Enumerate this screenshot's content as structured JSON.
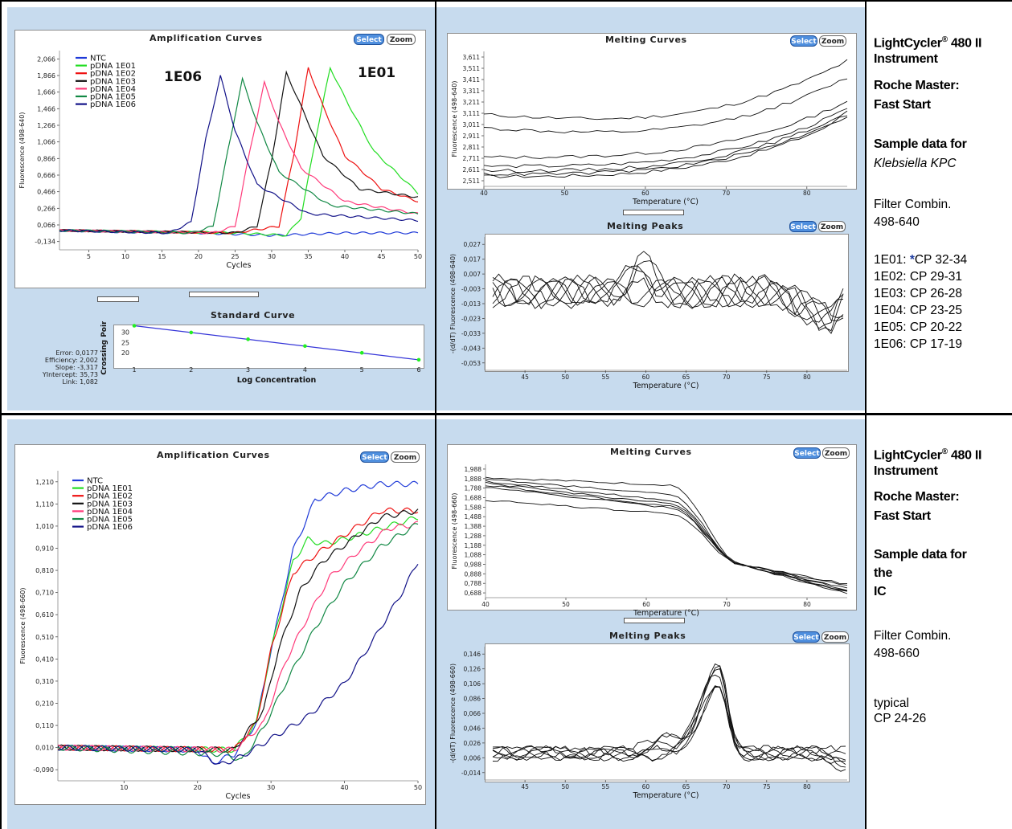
{
  "top": {
    "amp": {
      "title": "Amplification Curves",
      "select": "Select",
      "zoom": "Zoom",
      "ylabel": "Fluorescence (498-640)",
      "xlabel": "Cycles",
      "legend": [
        {
          "name": "NTC",
          "color": "#1f3ad8"
        },
        {
          "name": "pDNA 1E01",
          "color": "#22dd22"
        },
        {
          "name": "pDNA 1E02",
          "color": "#ee1111"
        },
        {
          "name": "pDNA 1E03",
          "color": "#111111"
        },
        {
          "name": "pDNA 1E04",
          "color": "#ff3a7a"
        },
        {
          "name": "pDNA 1E05",
          "color": "#118844"
        },
        {
          "name": "pDNA 1E06",
          "color": "#121288"
        }
      ],
      "annot_left": "1E06",
      "annot_right": "1E01"
    },
    "std": {
      "title": "Standard Curve",
      "ylabel": "Crossing Point",
      "xlabel": "Log Concentration",
      "stats": [
        "Error: 0,0177",
        "Efficiency: 2,002",
        "Slope: -3,317",
        "YIntercept: 35,73",
        "Link: 1,082"
      ]
    },
    "melt": {
      "title": "Melting Curves",
      "select": "Select",
      "zoom": "Zoom",
      "ylabel": "Fluorescence (498-640)",
      "xlabel": "Temperature (°C)"
    },
    "peaks": {
      "title": "Melting Peaks",
      "select": "Select",
      "zoom": "Zoom",
      "ylabel": "-(d/dT) Fluorescence (498-640)",
      "xlabel": "Temperature (°C)"
    },
    "side": {
      "instrument": "LightCycler",
      "reg": "®",
      "instrument2": " 480 II",
      "instrument3": "Instrument",
      "master1": "Roche Master:",
      "master2": "Fast Start",
      "sample1": "Sample data for",
      "sample2": "Klebsiella KPC",
      "filter1": "Filter Combin.",
      "filter2": "498-640",
      "cp": [
        {
          "label": "1E01: ",
          "star": "*",
          "value": "CP 32-34"
        },
        {
          "label": "1E02: ",
          "star": "",
          "value": "CP 29-31"
        },
        {
          "label": "1E03: ",
          "star": "",
          "value": "CP 26-28"
        },
        {
          "label": "1E04: ",
          "star": "",
          "value": "CP 23-25"
        },
        {
          "label": "1E05: ",
          "star": "",
          "value": "CP 20-22"
        },
        {
          "label": "1E06: ",
          "star": "",
          "value": "CP 17-19"
        }
      ]
    }
  },
  "bottom": {
    "amp": {
      "title": "Amplification Curves",
      "select": "Select",
      "zoom": "Zoom",
      "ylabel": "Fluorescence (498-660)",
      "xlabel": "Cycles",
      "legend": [
        {
          "name": "NTC",
          "color": "#1f3ad8"
        },
        {
          "name": "pDNA 1E01",
          "color": "#22dd22"
        },
        {
          "name": "pDNA 1E02",
          "color": "#ee1111"
        },
        {
          "name": "pDNA 1E03",
          "color": "#111111"
        },
        {
          "name": "pDNA 1E04",
          "color": "#ff3a7a"
        },
        {
          "name": "pDNA 1E05",
          "color": "#118844"
        },
        {
          "name": "pDNA 1E06",
          "color": "#121288"
        }
      ]
    },
    "melt": {
      "title": "Melting Curves",
      "select": "Select",
      "zoom": "Zoom",
      "ylabel": "Fluorescence (498-660)",
      "xlabel": "Temperature (°C)"
    },
    "peaks": {
      "title": "Melting Peaks",
      "select": "Select",
      "zoom": "Zoom",
      "ylabel": "-(d/dT) Fluorescence (498-660)",
      "xlabel": "Temperature (°C)"
    },
    "side": {
      "instrument": "LightCycler",
      "reg": "®",
      "instrument2": " 480 II",
      "instrument3": "Instrument",
      "master1": "Roche Master:",
      "master2": "Fast Start",
      "sample1": "Sample data for",
      "sample2": "the",
      "sample3": "IC",
      "filter1": "Filter Combin.",
      "filter2": "498-660",
      "typ1": "typical",
      "typ2": "CP 24-26"
    }
  },
  "chart_data": [
    {
      "type": "line",
      "title": "Amplification Curves",
      "xlabel": "Cycles",
      "ylabel": "Fluorescence (498-640)",
      "xlim": [
        1,
        50
      ],
      "ylim": [
        -0.234,
        2.166
      ],
      "xticks": [
        5,
        10,
        15,
        20,
        25,
        30,
        35,
        40,
        45,
        50
      ],
      "yticks": [
        "2,066",
        "1,866",
        "1,666",
        "1,466",
        "1,266",
        "1,066",
        "0,866",
        "0,666",
        "0,466",
        "0,266",
        "0,066",
        "-0,134"
      ],
      "series": [
        {
          "name": "NTC",
          "color": "#1f3ad8",
          "x": [
            1,
            10,
            20,
            30,
            40,
            50
          ],
          "y": [
            0.0,
            -0.02,
            -0.03,
            -0.06,
            -0.03,
            -0.03
          ]
        },
        {
          "name": "pDNA 1E01",
          "color": "#22dd22",
          "x": [
            1,
            25,
            32,
            34,
            36,
            38,
            40,
            44,
            50
          ],
          "y": [
            0.0,
            -0.03,
            -0.06,
            0.15,
            1.1,
            1.96,
            1.6,
            0.95,
            0.45
          ]
        },
        {
          "name": "pDNA 1E02",
          "color": "#ee1111",
          "x": [
            1,
            25,
            31,
            33,
            35,
            37,
            40,
            45,
            50
          ],
          "y": [
            0.0,
            -0.03,
            0.05,
            0.9,
            1.96,
            1.5,
            0.9,
            0.5,
            0.35
          ]
        },
        {
          "name": "pDNA 1E03",
          "color": "#111111",
          "x": [
            1,
            25,
            28,
            30,
            32,
            34,
            37,
            42,
            50
          ],
          "y": [
            0.0,
            -0.03,
            0.05,
            0.85,
            1.9,
            1.5,
            0.9,
            0.5,
            0.4
          ]
        },
        {
          "name": "pDNA 1E04",
          "color": "#ff3a7a",
          "x": [
            1,
            22,
            25,
            27,
            29,
            31,
            34,
            40,
            50
          ],
          "y": [
            0.0,
            -0.03,
            0.05,
            0.95,
            1.78,
            1.3,
            0.75,
            0.35,
            0.2
          ]
        },
        {
          "name": "pDNA 1E05",
          "color": "#118844",
          "x": [
            1,
            19,
            22,
            24,
            26,
            28,
            31,
            38,
            50
          ],
          "y": [
            0.0,
            -0.03,
            0.05,
            0.95,
            1.82,
            1.3,
            0.7,
            0.3,
            0.2
          ]
        },
        {
          "name": "pDNA 1E06",
          "color": "#121288",
          "x": [
            1,
            16,
            19,
            21,
            23,
            25,
            28,
            35,
            50
          ],
          "y": [
            0.0,
            -0.03,
            0.1,
            1.1,
            1.86,
            1.2,
            0.55,
            0.2,
            0.12
          ]
        }
      ]
    },
    {
      "type": "scatter",
      "title": "Standard Curve",
      "xlabel": "Log Concentration",
      "ylabel": "Crossing Point",
      "x": [
        1,
        2,
        3,
        4,
        5,
        6
      ],
      "y": [
        33.2,
        29.9,
        26.6,
        23.3,
        20.0,
        16.6
      ],
      "xlim": [
        1,
        6
      ],
      "ylim": [
        15,
        33
      ]
    },
    {
      "type": "line",
      "title": "Melting Curves",
      "xlabel": "Temperature (°C)",
      "ylabel": "Fluorescence (498-640)",
      "xlim": [
        40,
        85
      ],
      "ylim": [
        2.461,
        3.661
      ],
      "xticks": [
        40,
        50,
        60,
        70,
        80
      ],
      "yticks": [
        "3,611",
        "3,511",
        "3,411",
        "3,311",
        "3,211",
        "3,111",
        "3,011",
        "2,911",
        "2,811",
        "2,711",
        "2,611",
        "2,511"
      ]
    },
    {
      "type": "line",
      "title": "Melting Peaks",
      "xlabel": "Temperature (°C)",
      "ylabel": "-(d/dT) Fluorescence (498-640)",
      "xlim": [
        40,
        85
      ],
      "ylim": [
        -0.058,
        0.032
      ],
      "xticks": [
        45,
        50,
        55,
        60,
        65,
        70,
        75,
        80
      ],
      "yticks": [
        "0,027",
        "0,017",
        "0,007",
        "-0,003",
        "-0,013",
        "-0,023",
        "-0,033",
        "-0,043",
        "-0,053"
      ]
    },
    {
      "type": "line",
      "title": "Amplification Curves",
      "xlabel": "Cycles",
      "ylabel": "Fluorescence (498-660)",
      "xlim": [
        1,
        50
      ],
      "ylim": [
        -0.14,
        1.26
      ],
      "xticks": [
        10,
        20,
        30,
        40,
        50
      ],
      "yticks": [
        "1,210",
        "1,110",
        "1,010",
        "0,910",
        "0,810",
        "0,710",
        "0,610",
        "0,510",
        "0,410",
        "0,310",
        "0,210",
        "0,110",
        "0,010",
        "-0,090"
      ],
      "series": [
        {
          "name": "NTC",
          "color": "#1f3ad8",
          "x": [
            1,
            20,
            22,
            25,
            28,
            30,
            33,
            36,
            40,
            45,
            50
          ],
          "y": [
            0.01,
            0.0,
            -0.06,
            -0.02,
            0.12,
            0.45,
            0.9,
            1.13,
            1.17,
            1.2,
            1.2
          ]
        },
        {
          "name": "pDNA 1E01",
          "color": "#22dd22",
          "x": [
            1,
            25,
            28,
            30,
            33,
            35,
            37,
            40,
            45,
            50
          ],
          "y": [
            0.01,
            0.0,
            0.12,
            0.45,
            0.85,
            0.95,
            0.93,
            0.95,
            1.0,
            1.05
          ]
        },
        {
          "name": "pDNA 1E02",
          "color": "#ee1111",
          "x": [
            1,
            25,
            28,
            30,
            33,
            36,
            40,
            45,
            50
          ],
          "y": [
            0.01,
            0.0,
            0.12,
            0.45,
            0.8,
            0.88,
            0.97,
            1.08,
            1.08
          ]
        },
        {
          "name": "pDNA 1E03",
          "color": "#111111",
          "x": [
            1,
            25,
            29,
            31,
            34,
            37,
            41,
            45,
            50
          ],
          "y": [
            0.01,
            0.0,
            0.18,
            0.45,
            0.72,
            0.85,
            0.95,
            1.05,
            1.08
          ]
        },
        {
          "name": "pDNA 1E04",
          "color": "#ff3a7a",
          "x": [
            1,
            25,
            29,
            32,
            35,
            38,
            42,
            46,
            50
          ],
          "y": [
            0.01,
            0.0,
            0.12,
            0.4,
            0.6,
            0.78,
            0.9,
            1.0,
            1.02
          ]
        },
        {
          "name": "pDNA 1E05",
          "color": "#118844",
          "x": [
            1,
            24,
            26,
            29,
            32,
            36,
            40,
            45,
            50
          ],
          "y": [
            0.01,
            -0.02,
            -0.05,
            0.1,
            0.3,
            0.55,
            0.75,
            0.92,
            1.02
          ]
        },
        {
          "name": "pDNA 1E06",
          "color": "#121288",
          "x": [
            1,
            20,
            23,
            26,
            30,
            35,
            40,
            44,
            48,
            50
          ],
          "y": [
            0.01,
            0.0,
            -0.07,
            -0.03,
            0.05,
            0.15,
            0.3,
            0.5,
            0.72,
            0.85
          ]
        }
      ]
    },
    {
      "type": "line",
      "title": "Melting Curves",
      "xlabel": "Temperature (°C)",
      "ylabel": "Fluorescence (498-660)",
      "xlim": [
        40,
        85
      ],
      "ylim": [
        0.638,
        2.038
      ],
      "xticks": [
        40,
        50,
        60,
        70,
        80
      ],
      "yticks": [
        "1,988",
        "1,888",
        "1,788",
        "1,688",
        "1,588",
        "1,488",
        "1,388",
        "1,288",
        "1,188",
        "1,088",
        "0,988",
        "0,888",
        "0,788",
        "0,688"
      ]
    },
    {
      "type": "line",
      "title": "Melting Peaks",
      "xlabel": "Temperature (°C)",
      "ylabel": "-(d/dT) Fluorescence (498-660)",
      "xlim": [
        40,
        85
      ],
      "ylim": [
        -0.024,
        0.156
      ],
      "xticks": [
        45,
        50,
        55,
        60,
        65,
        70,
        75,
        80
      ],
      "yticks": [
        "0,146",
        "0,126",
        "0,106",
        "0,086",
        "0,066",
        "0,046",
        "0,026",
        "0,006",
        "-0,014"
      ]
    }
  ]
}
